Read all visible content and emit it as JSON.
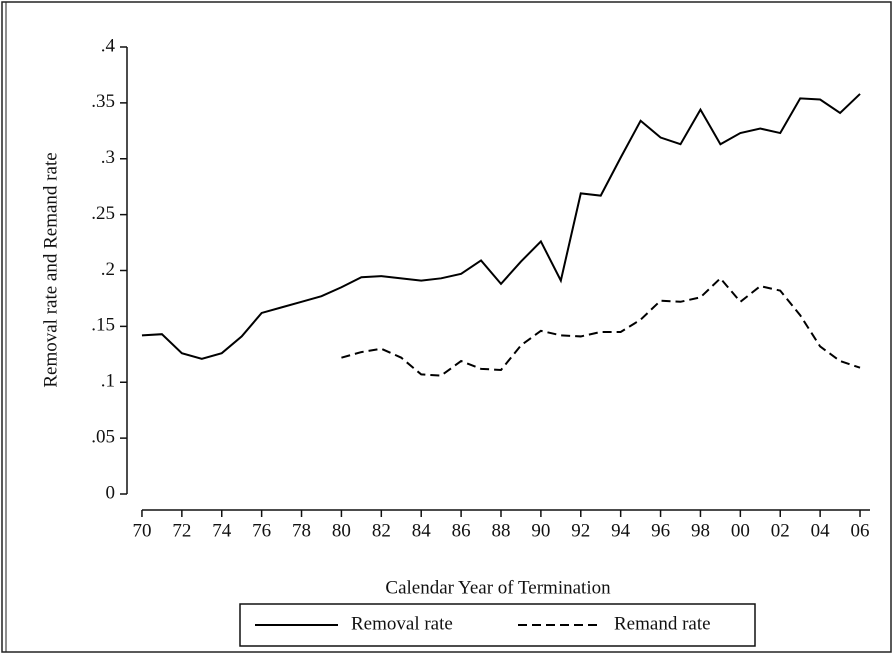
{
  "chart_data": {
    "type": "line",
    "xlabel": "Calendar Year of Termination",
    "ylabel": "Removal rate and Remand rate",
    "x": [
      1970,
      1971,
      1972,
      1973,
      1974,
      1975,
      1976,
      1977,
      1978,
      1979,
      1980,
      1981,
      1982,
      1983,
      1984,
      1985,
      1986,
      1987,
      1988,
      1989,
      1990,
      1991,
      1992,
      1993,
      1994,
      1995,
      1996,
      1997,
      1998,
      1999,
      2000,
      2001,
      2002,
      2003,
      2004,
      2005,
      2006
    ],
    "series": [
      {
        "name": "Removal rate",
        "color": "#000000",
        "dash": "solid",
        "values": [
          0.142,
          0.143,
          0.126,
          0.121,
          0.126,
          0.141,
          0.162,
          0.167,
          0.172,
          0.177,
          0.185,
          0.194,
          0.195,
          0.193,
          0.191,
          0.193,
          0.197,
          0.209,
          0.188,
          0.208,
          0.226,
          0.191,
          0.269,
          0.267,
          0.301,
          0.334,
          0.319,
          0.313,
          0.344,
          0.313,
          0.323,
          0.327,
          0.323,
          0.354,
          0.353,
          0.341,
          0.358
        ]
      },
      {
        "name": "Remand rate",
        "color": "#000000",
        "dash": "dashed",
        "values": [
          null,
          null,
          null,
          null,
          null,
          null,
          null,
          null,
          null,
          null,
          0.122,
          0.127,
          0.13,
          0.122,
          0.107,
          0.106,
          0.119,
          0.112,
          0.111,
          0.133,
          0.146,
          0.142,
          0.141,
          0.145,
          0.145,
          0.156,
          0.173,
          0.172,
          0.176,
          0.193,
          0.172,
          0.186,
          0.182,
          0.16,
          0.132,
          0.119,
          0.113
        ]
      }
    ],
    "xlim": [
      1969.25,
      2006.5
    ],
    "ylim": [
      0,
      0.4
    ],
    "xticks": [
      {
        "value": 1970,
        "label": "70"
      },
      {
        "value": 1972,
        "label": "72"
      },
      {
        "value": 1974,
        "label": "74"
      },
      {
        "value": 1976,
        "label": "76"
      },
      {
        "value": 1978,
        "label": "78"
      },
      {
        "value": 1980,
        "label": "80"
      },
      {
        "value": 1982,
        "label": "82"
      },
      {
        "value": 1984,
        "label": "84"
      },
      {
        "value": 1986,
        "label": "86"
      },
      {
        "value": 1988,
        "label": "88"
      },
      {
        "value": 1990,
        "label": "90"
      },
      {
        "value": 1992,
        "label": "92"
      },
      {
        "value": 1994,
        "label": "94"
      },
      {
        "value": 1996,
        "label": "96"
      },
      {
        "value": 1998,
        "label": "98"
      },
      {
        "value": 2000,
        "label": "00"
      },
      {
        "value": 2002,
        "label": "02"
      },
      {
        "value": 2004,
        "label": "04"
      },
      {
        "value": 2006,
        "label": "06"
      }
    ],
    "yticks": [
      0,
      {
        "value": 0.05,
        "label": ".05"
      },
      {
        "value": 0.1,
        "label": ".1"
      },
      {
        "value": 0.15,
        "label": ".15"
      },
      {
        "value": 0.2,
        "label": ".2"
      },
      {
        "value": 0.25,
        "label": ".25"
      },
      {
        "value": 0.3,
        "label": ".3"
      },
      {
        "value": 0.35,
        "label": ".35"
      },
      {
        "value": 0.4,
        "label": ".4"
      }
    ],
    "legend": "bottom"
  }
}
